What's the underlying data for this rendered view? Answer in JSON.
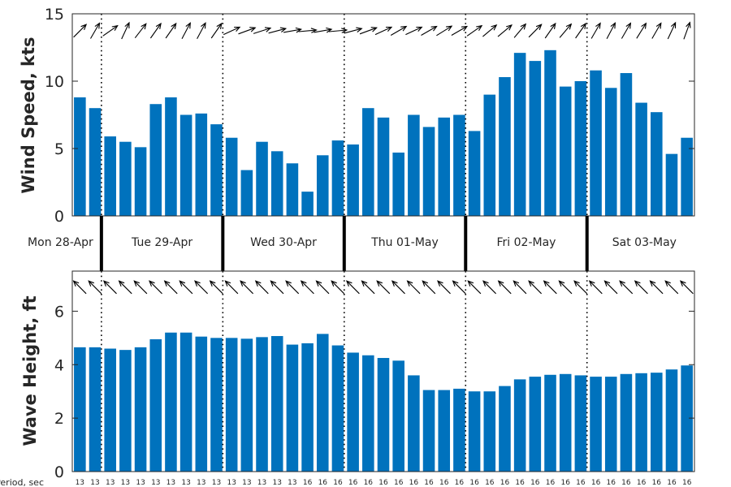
{
  "chart_data": [
    {
      "type": "bar",
      "ylabel": "Wind Speed, kts",
      "ylim": [
        0,
        15
      ],
      "yticks": [
        0,
        5,
        10,
        15
      ],
      "values": [
        8.8,
        8.0,
        5.9,
        5.5,
        5.1,
        8.3,
        8.8,
        7.5,
        7.6,
        6.8,
        5.8,
        3.4,
        5.5,
        4.8,
        3.9,
        1.8,
        4.5,
        5.6,
        5.3,
        8.0,
        7.3,
        4.7,
        7.5,
        6.6,
        7.3,
        7.5,
        6.3,
        9.0,
        10.3,
        12.1,
        11.5,
        12.3,
        9.6,
        10.0,
        10.8,
        9.5,
        10.6,
        8.4,
        7.7,
        4.6,
        5.8
      ],
      "arrow_directions_deg": [
        135,
        120,
        145,
        115,
        128,
        125,
        125,
        118,
        118,
        125,
        155,
        160,
        162,
        165,
        170,
        175,
        170,
        175,
        165,
        160,
        155,
        150,
        155,
        150,
        148,
        150,
        145,
        140,
        140,
        130,
        135,
        125,
        130,
        125,
        120,
        118,
        120,
        122,
        120,
        115,
        110
      ],
      "grid": false,
      "legend": "none"
    },
    {
      "type": "bar",
      "ylabel": "Wave Height, ft",
      "ylim": [
        0,
        7.5
      ],
      "yticks": [
        0,
        2,
        4,
        6
      ],
      "values": [
        4.65,
        4.65,
        4.6,
        4.55,
        4.65,
        4.95,
        5.2,
        5.2,
        5.05,
        5.0,
        5.0,
        4.97,
        5.03,
        5.07,
        4.75,
        4.8,
        5.15,
        4.72,
        4.45,
        4.35,
        4.25,
        4.15,
        3.6,
        3.05,
        3.05,
        3.1,
        3.0,
        3.0,
        3.2,
        3.45,
        3.55,
        3.62,
        3.65,
        3.6,
        3.55,
        3.55,
        3.65,
        3.68,
        3.7,
        3.82,
        3.97
      ],
      "arrow_directions_deg": [
        45,
        45,
        45,
        45,
        45,
        45,
        45,
        45,
        45,
        45,
        45,
        45,
        45,
        45,
        45,
        45,
        45,
        45,
        45,
        45,
        45,
        45,
        45,
        45,
        45,
        45,
        45,
        45,
        45,
        45,
        45,
        45,
        45,
        45,
        45,
        45,
        45,
        45,
        45,
        45,
        45
      ],
      "grid": false,
      "legend": "none"
    }
  ],
  "colors": {
    "bar": "#0072bd",
    "axis": "#262626",
    "arrow": "#000000"
  },
  "days": [
    "Mon 28-Apr",
    "Tue 29-Apr",
    "Wed 30-Apr",
    "Thu 01-May",
    "Fri 02-May",
    "Sat 03-May"
  ],
  "period": {
    "label": "Period, sec",
    "values": [
      13,
      13,
      13,
      13,
      13,
      13,
      13,
      13,
      13,
      13,
      13,
      13,
      13,
      13,
      13,
      16,
      16,
      16,
      16,
      16,
      16,
      16,
      16,
      16,
      16,
      16,
      16,
      16,
      16,
      16,
      16,
      16,
      16,
      16,
      16,
      16,
      16,
      16,
      16,
      16,
      16
    ]
  }
}
